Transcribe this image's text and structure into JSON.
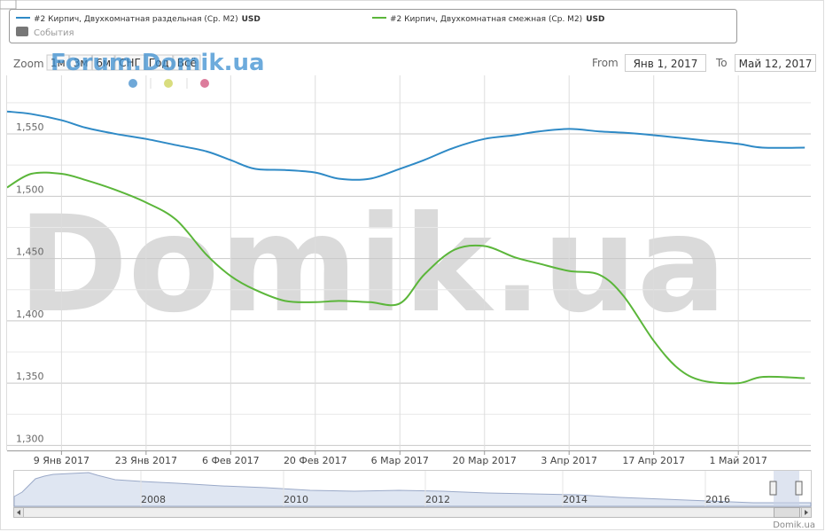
{
  "chart_data": {
    "type": "line",
    "legend_unit": "USD",
    "events_label": "События",
    "zoom_label": "Zoom",
    "range_buttons": [
      "1м",
      "3м",
      "6м",
      "СНГ",
      "Год",
      "Всё"
    ],
    "from_label": "From",
    "from_value": "Янв 1, 2017",
    "to_label": "To",
    "to_value": "Май 12, 2017",
    "forum_watermark": "Forum.Domik.ua",
    "watermark": "Domik.ua",
    "credits": "Domik.ua",
    "navigator_labels": [
      "2008",
      "2010",
      "2012",
      "2014",
      "2016"
    ],
    "x": [
      "2016-12-31",
      "2017-01-04",
      "2017-01-09",
      "2017-01-13",
      "2017-01-18",
      "2017-01-23",
      "2017-01-28",
      "2017-02-02",
      "2017-02-06",
      "2017-02-10",
      "2017-02-15",
      "2017-02-20",
      "2017-02-24",
      "2017-03-01",
      "2017-03-06",
      "2017-03-10",
      "2017-03-15",
      "2017-03-20",
      "2017-03-25",
      "2017-03-29",
      "2017-04-03",
      "2017-04-08",
      "2017-04-12",
      "2017-04-17",
      "2017-04-21",
      "2017-04-25",
      "2017-05-01",
      "2017-05-05",
      "2017-05-12"
    ],
    "series": [
      {
        "name": "#2 Кирпич, Двухкомнатная раздельная (Ср. М2)",
        "color": "#2f8ac6",
        "values": [
          1568,
          1566,
          1561,
          1555,
          1550,
          1546,
          1541,
          1536,
          1529,
          1522,
          1521,
          1519,
          1514,
          1514,
          1522,
          1529,
          1539,
          1546,
          1549,
          1552,
          1554,
          1552,
          1551,
          1549,
          1547,
          1545,
          1542,
          1539,
          1539
        ]
      },
      {
        "name": "#2 Кирпич, Двухкомнатная смежная (Ср. М2)",
        "color": "#5bb63a",
        "values": [
          1507,
          1518,
          1518,
          1513,
          1505,
          1495,
          1481,
          1453,
          1436,
          1425,
          1416,
          1415,
          1416,
          1415,
          1414,
          1437,
          1457,
          1460,
          1451,
          1446,
          1440,
          1437,
          1420,
          1384,
          1362,
          1352,
          1350,
          1355,
          1354
        ]
      }
    ],
    "xlim": [
      "2016-12-31",
      "2017-05-13"
    ],
    "xticks": [
      {
        "value": "2017-01-09",
        "label": "9 Янв 2017"
      },
      {
        "value": "2017-01-23",
        "label": "23 Янв 2017"
      },
      {
        "value": "2017-02-06",
        "label": "6 Фев 2017"
      },
      {
        "value": "2017-02-20",
        "label": "20 Фев 2017"
      },
      {
        "value": "2017-03-06",
        "label": "6 Мар 2017"
      },
      {
        "value": "2017-03-20",
        "label": "20 Мар 2017"
      },
      {
        "value": "2017-04-03",
        "label": "3 Апр 2017"
      },
      {
        "value": "2017-04-17",
        "label": "17 Апр 2017"
      },
      {
        "value": "2017-05-01",
        "label": "1 Май 2017"
      }
    ],
    "ylim": [
      1296,
      1597
    ],
    "yticks": [
      {
        "value": 1300,
        "label": "1,300"
      },
      {
        "value": 1350,
        "label": "1,350"
      },
      {
        "value": 1400,
        "label": "1,400"
      },
      {
        "value": 1450,
        "label": "1,450"
      },
      {
        "value": 1500,
        "label": "1,500"
      },
      {
        "value": 1550,
        "label": "1,550"
      }
    ],
    "minor_yticks": [
      1325,
      1375,
      1425,
      1475,
      1525,
      1575
    ],
    "grid": true
  }
}
